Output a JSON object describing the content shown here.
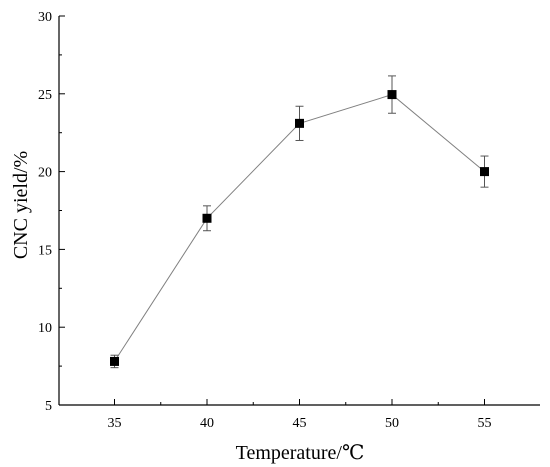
{
  "chart_data": {
    "type": "line",
    "title": "",
    "xlabel": "Temperature/℃",
    "ylabel": "CNC yield/%",
    "x": [
      35,
      40,
      45,
      50,
      55
    ],
    "series": [
      {
        "values": [
          7.8,
          17.0,
          23.1,
          24.95,
          20.0
        ],
        "errors": [
          0.4,
          0.8,
          1.1,
          1.2,
          1.0
        ],
        "marker": "square",
        "line_color": "#808080",
        "marker_color": "#000000"
      }
    ],
    "xticks": [
      "35",
      "40",
      "45",
      "50",
      "55"
    ],
    "yticks": [
      "5",
      "10",
      "15",
      "20",
      "25",
      "30"
    ],
    "xlim": [
      32,
      58
    ],
    "ylim": [
      5,
      30
    ],
    "grid": false,
    "legend": "none"
  }
}
